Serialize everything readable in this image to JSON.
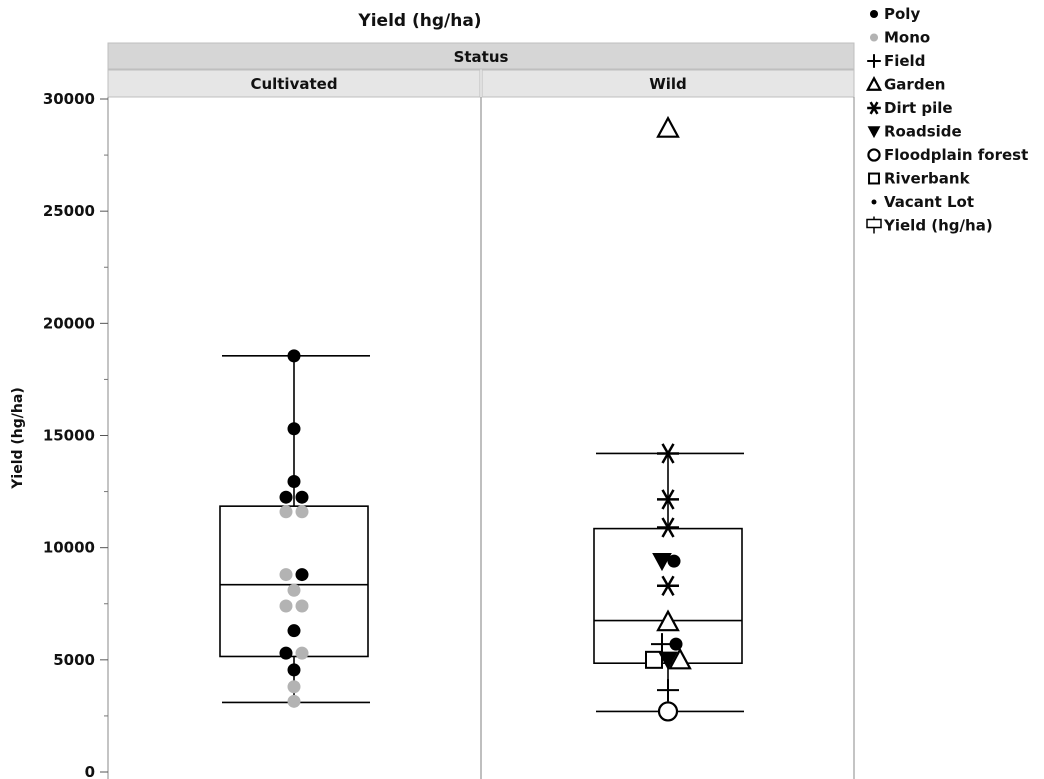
{
  "chart_data": {
    "type": "box",
    "title": "Yield (hg/ha)",
    "group_header": "Status",
    "ylabel": "Yield (hg/ha)",
    "ylim": [
      0,
      30000
    ],
    "y_ticks": [
      0,
      5000,
      10000,
      15000,
      20000,
      25000,
      30000
    ],
    "y_tick_labels": [
      "0",
      "5000",
      "10000",
      "15000",
      "20000",
      "25000",
      "30000"
    ],
    "grid": false,
    "legend_position": "right",
    "legend": [
      {
        "label": "Poly",
        "marker": "dot-black"
      },
      {
        "label": "Mono",
        "marker": "dot-gray"
      },
      {
        "label": "Field",
        "marker": "plus"
      },
      {
        "label": "Garden",
        "marker": "triangle-up"
      },
      {
        "label": "Dirt pile",
        "marker": "asterisk"
      },
      {
        "label": "Roadside",
        "marker": "triangle-down"
      },
      {
        "label": "Floodplain forest",
        "marker": "circle-open"
      },
      {
        "label": "Riverbank",
        "marker": "square-open"
      },
      {
        "label": "Vacant Lot",
        "marker": "dot-small"
      },
      {
        "label": "Yield (hg/ha)",
        "marker": "box"
      }
    ],
    "panels": [
      {
        "label": "Cultivated",
        "box": {
          "whisker_low": 3100,
          "q1": 5150,
          "median": 8350,
          "q3": 11850,
          "whisker_high": 18550
        },
        "points": [
          {
            "y": 18550,
            "marker": "dot-black",
            "dx": 0
          },
          {
            "y": 15300,
            "marker": "dot-black",
            "dx": 0
          },
          {
            "y": 12950,
            "marker": "dot-black",
            "dx": 0
          },
          {
            "y": 12250,
            "marker": "dot-black",
            "dx": -8
          },
          {
            "y": 12250,
            "marker": "dot-black",
            "dx": 8
          },
          {
            "y": 11600,
            "marker": "dot-gray",
            "dx": -8
          },
          {
            "y": 11600,
            "marker": "dot-gray",
            "dx": 8
          },
          {
            "y": 8800,
            "marker": "dot-gray",
            "dx": -8
          },
          {
            "y": 8800,
            "marker": "dot-black",
            "dx": 8
          },
          {
            "y": 8100,
            "marker": "dot-gray",
            "dx": 0
          },
          {
            "y": 7400,
            "marker": "dot-gray",
            "dx": -8
          },
          {
            "y": 7400,
            "marker": "dot-gray",
            "dx": 8
          },
          {
            "y": 6300,
            "marker": "dot-black",
            "dx": 0
          },
          {
            "y": 5300,
            "marker": "dot-black",
            "dx": -8
          },
          {
            "y": 5300,
            "marker": "dot-gray",
            "dx": 8
          },
          {
            "y": 4550,
            "marker": "dot-black",
            "dx": 0
          },
          {
            "y": 3800,
            "marker": "dot-gray",
            "dx": 0
          },
          {
            "y": 3150,
            "marker": "dot-gray",
            "dx": 0
          }
        ]
      },
      {
        "label": "Wild",
        "box": {
          "whisker_low": 2700,
          "q1": 4850,
          "median": 6750,
          "q3": 10850,
          "whisker_high": 14200
        },
        "points": [
          {
            "y": 28700,
            "marker": "triangle-up",
            "dx": 0
          },
          {
            "y": 14200,
            "marker": "asterisk",
            "dx": 0
          },
          {
            "y": 12150,
            "marker": "asterisk",
            "dx": 0
          },
          {
            "y": 10900,
            "marker": "asterisk",
            "dx": 0
          },
          {
            "y": 9400,
            "marker": "triangle-down",
            "dx": -6
          },
          {
            "y": 9400,
            "marker": "dot-black",
            "dx": 6
          },
          {
            "y": 8300,
            "marker": "asterisk",
            "dx": 0
          },
          {
            "y": 6700,
            "marker": "triangle-up",
            "dx": 0
          },
          {
            "y": 5700,
            "marker": "plus",
            "dx": -6
          },
          {
            "y": 5700,
            "marker": "dot-black",
            "dx": 8
          },
          {
            "y": 5000,
            "marker": "square-open",
            "dx": -14
          },
          {
            "y": 5000,
            "marker": "triangle-down",
            "dx": 0
          },
          {
            "y": 5000,
            "marker": "triangle-up",
            "dx": 12
          },
          {
            "y": 3650,
            "marker": "plus",
            "dx": 0
          },
          {
            "y": 2700,
            "marker": "circle-open",
            "dx": 0
          }
        ]
      }
    ]
  }
}
